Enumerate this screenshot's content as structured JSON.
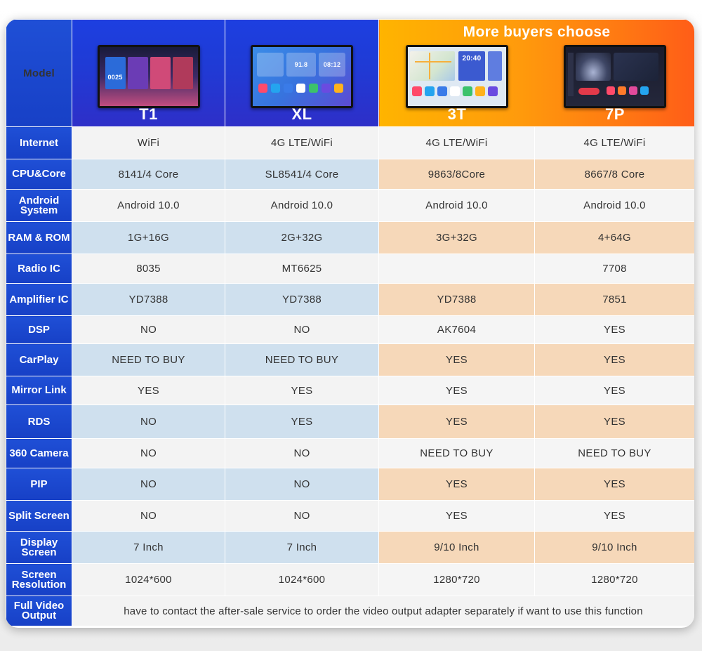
{
  "header": {
    "model_label": "Model",
    "banner": "More buyers choose",
    "products": [
      {
        "name": "T1",
        "screen_clock": "0025"
      },
      {
        "name": "XL",
        "screen_clock": "08:12",
        "screen_radio": "91.8"
      },
      {
        "name": "3T",
        "screen_clock": "20:40"
      },
      {
        "name": "7P"
      }
    ]
  },
  "rows": [
    {
      "label": "Internet",
      "values": [
        "WiFi",
        "4G LTE/WiFi",
        "4G LTE/WiFi",
        "4G LTE/WiFi"
      ]
    },
    {
      "label": "CPU&Core",
      "values": [
        "8141/4 Core",
        "SL8541/4 Core",
        "9863/8Core",
        "8667/8 Core"
      ]
    },
    {
      "label": "Android System",
      "values": [
        "Android 10.0",
        "Android 10.0",
        "Android 10.0",
        "Android 10.0"
      ]
    },
    {
      "label": "RAM & ROM",
      "values": [
        "1G+16G",
        "2G+32G",
        "3G+32G",
        "4+64G"
      ]
    },
    {
      "label": "Radio IC",
      "values": [
        "8035",
        "MT6625",
        "",
        "7708"
      ]
    },
    {
      "label": "Amplifier IC",
      "values": [
        "YD7388",
        "YD7388",
        "YD7388",
        "7851"
      ]
    },
    {
      "label": "DSP",
      "values": [
        "NO",
        "NO",
        "AK7604",
        "YES"
      ]
    },
    {
      "label": "CarPlay",
      "values": [
        "NEED TO BUY",
        "NEED TO BUY",
        "YES",
        "YES"
      ]
    },
    {
      "label": "Mirror Link",
      "values": [
        "YES",
        "YES",
        "YES",
        "YES"
      ]
    },
    {
      "label": "RDS",
      "values": [
        "NO",
        "YES",
        "YES",
        "YES"
      ]
    },
    {
      "label": "360 Camera",
      "values": [
        "NO",
        "NO",
        "NEED TO BUY",
        "NEED TO BUY"
      ]
    },
    {
      "label": "PIP",
      "values": [
        "NO",
        "NO",
        "YES",
        "YES"
      ]
    },
    {
      "label": "Split Screen",
      "values": [
        "NO",
        "NO",
        "YES",
        "YES"
      ]
    },
    {
      "label": "Display Screen",
      "values": [
        "7 Inch",
        "7 Inch",
        "9/10 Inch",
        "9/10 Inch"
      ]
    },
    {
      "label": "Screen Resolution",
      "values": [
        "1024*600",
        "1024*600",
        "1280*720",
        "1280*720"
      ]
    }
  ],
  "footer": {
    "label": "Full Video Output",
    "note": "have to contact the after-sale service to order the video output adapter separately if want to use this function"
  },
  "colors": {
    "label_blue": "#1f4fd6",
    "row_blue": "#cfe0ee",
    "row_peach": "#f6d8b9",
    "row_white": "#f3f3f3",
    "banner_orange": "#ff9a0c"
  }
}
